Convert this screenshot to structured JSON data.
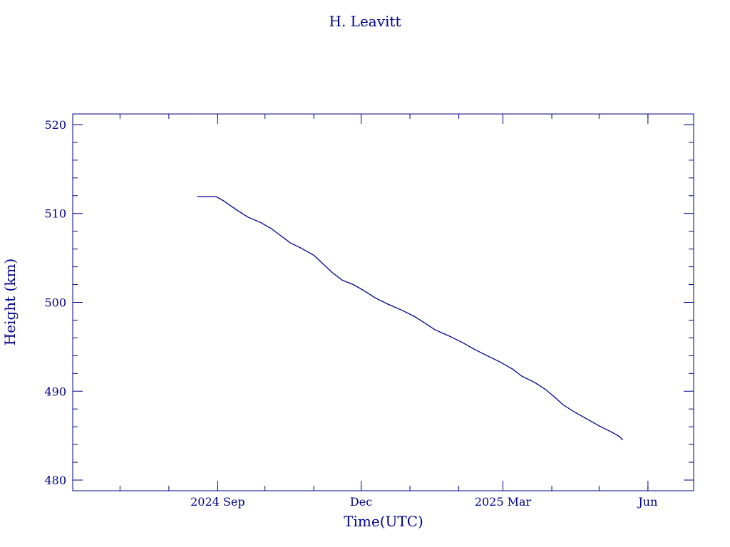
{
  "chart_data": {
    "type": "line",
    "title": "H. Leavitt",
    "xlabel": "Time(UTC)",
    "ylabel": "Height (km)",
    "xlim": [
      "2024-06-01",
      "2025-06-30"
    ],
    "ylim": [
      478.8,
      521.2
    ],
    "x_ticks": [
      {
        "label": "2024 Sep",
        "date": "2024-09-01"
      },
      {
        "label": "Dec",
        "date": "2024-12-01"
      },
      {
        "label": "2025 Mar",
        "date": "2025-03-01"
      },
      {
        "label": "Jun",
        "date": "2025-06-01"
      }
    ],
    "y_ticks": [
      {
        "label": "480",
        "value": 480
      },
      {
        "label": "490",
        "value": 490
      },
      {
        "label": "500",
        "value": 500
      },
      {
        "label": "510",
        "value": 510
      },
      {
        "label": "520",
        "value": 520
      }
    ],
    "grid": false,
    "color": "#00008b",
    "series": [
      {
        "points": [
          [
            "2024-08-19",
            511.9
          ],
          [
            "2024-08-31",
            511.9
          ],
          [
            "2024-09-05",
            511.4
          ],
          [
            "2024-09-13",
            510.4
          ],
          [
            "2024-09-20",
            509.6
          ],
          [
            "2024-09-28",
            509.0
          ],
          [
            "2024-10-05",
            508.3
          ],
          [
            "2024-10-11",
            507.5
          ],
          [
            "2024-10-17",
            506.7
          ],
          [
            "2024-10-24",
            506.1
          ],
          [
            "2024-11-01",
            505.3
          ],
          [
            "2024-11-07",
            504.3
          ],
          [
            "2024-11-13",
            503.3
          ],
          [
            "2024-11-19",
            502.5
          ],
          [
            "2024-11-26",
            502.0
          ],
          [
            "2024-12-03",
            501.3
          ],
          [
            "2024-12-10",
            500.5
          ],
          [
            "2024-12-18",
            499.8
          ],
          [
            "2024-12-27",
            499.1
          ],
          [
            "2025-01-04",
            498.4
          ],
          [
            "2025-01-11",
            497.6
          ],
          [
            "2025-01-17",
            496.9
          ],
          [
            "2025-01-26",
            496.2
          ],
          [
            "2025-02-03",
            495.5
          ],
          [
            "2025-02-11",
            494.7
          ],
          [
            "2025-02-19",
            494.0
          ],
          [
            "2025-02-27",
            493.3
          ],
          [
            "2025-03-07",
            492.5
          ],
          [
            "2025-03-13",
            491.7
          ],
          [
            "2025-03-21",
            491.0
          ],
          [
            "2025-03-28",
            490.2
          ],
          [
            "2025-04-03",
            489.3
          ],
          [
            "2025-04-08",
            488.5
          ],
          [
            "2025-04-15",
            487.7
          ],
          [
            "2025-04-23",
            486.9
          ],
          [
            "2025-05-01",
            486.1
          ],
          [
            "2025-05-09",
            485.4
          ],
          [
            "2025-05-14",
            484.9
          ],
          [
            "2025-05-16",
            484.5
          ]
        ]
      }
    ]
  }
}
